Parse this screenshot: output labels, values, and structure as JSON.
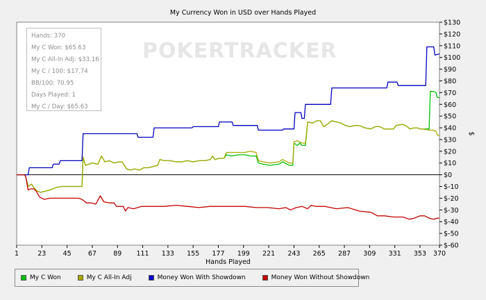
{
  "chart_data": {
    "type": "line",
    "title": "My Currency Won in USD over Hands Played",
    "xlabel": "Hands Played",
    "ylabel": "$",
    "xlim": [
      1,
      370
    ],
    "ylim": [
      -60,
      130
    ],
    "x_ticks": [
      1,
      23,
      45,
      67,
      89,
      111,
      133,
      155,
      177,
      199,
      221,
      243,
      265,
      287,
      309,
      331,
      353,
      370
    ],
    "y_ticks": [
      -60,
      -50,
      -40,
      -30,
      -20,
      -10,
      0,
      10,
      20,
      30,
      40,
      50,
      60,
      70,
      80,
      90,
      100,
      110,
      120,
      130
    ],
    "y_tick_labels": [
      "$-60",
      "$-50",
      "$-40",
      "$-30",
      "$-20",
      "$-10",
      "$0",
      "$10",
      "$20",
      "$30",
      "$40",
      "$50",
      "$60",
      "$70",
      "$80",
      "$90",
      "$100",
      "$110",
      "$120",
      "$130"
    ],
    "grid": false,
    "zero_line": true,
    "legend_position": "bottom",
    "series": [
      {
        "name": "My C Won",
        "color": "#00c000",
        "points": [
          [
            1,
            0
          ],
          [
            8,
            0
          ],
          [
            9,
            -2
          ],
          [
            11,
            -10
          ],
          [
            14,
            -8
          ],
          [
            16,
            -11
          ],
          [
            19,
            -14
          ],
          [
            22,
            -15
          ],
          [
            26,
            -14
          ],
          [
            30,
            -13
          ],
          [
            35,
            -11
          ],
          [
            40,
            -10
          ],
          [
            48,
            -10
          ],
          [
            58,
            -10
          ],
          [
            59,
            15
          ],
          [
            61,
            8
          ],
          [
            64,
            9
          ],
          [
            67,
            10
          ],
          [
            72,
            9
          ],
          [
            75,
            16
          ],
          [
            78,
            11
          ],
          [
            82,
            12
          ],
          [
            86,
            10
          ],
          [
            90,
            11
          ],
          [
            93,
            11
          ],
          [
            97,
            5
          ],
          [
            100,
            4
          ],
          [
            104,
            5
          ],
          [
            108,
            4
          ],
          [
            112,
            6
          ],
          [
            116,
            6
          ],
          [
            120,
            7
          ],
          [
            124,
            8
          ],
          [
            126,
            13
          ],
          [
            130,
            12
          ],
          [
            135,
            12
          ],
          [
            140,
            11
          ],
          [
            145,
            11
          ],
          [
            150,
            12
          ],
          [
            155,
            11
          ],
          [
            160,
            12
          ],
          [
            165,
            12
          ],
          [
            170,
            13
          ],
          [
            172,
            16
          ],
          [
            174,
            13
          ],
          [
            178,
            14
          ],
          [
            182,
            14
          ],
          [
            184,
            17
          ],
          [
            188,
            16
          ],
          [
            195,
            17
          ],
          [
            200,
            17
          ],
          [
            205,
            16
          ],
          [
            210,
            16
          ],
          [
            212,
            10
          ],
          [
            216,
            9
          ],
          [
            222,
            8
          ],
          [
            230,
            9
          ],
          [
            233,
            11
          ],
          [
            239,
            8
          ],
          [
            242,
            8
          ],
          [
            243,
            27
          ],
          [
            246,
            25
          ],
          [
            248,
            27
          ],
          [
            250,
            25
          ],
          [
            253,
            25
          ],
          [
            255,
            45
          ],
          [
            259,
            44
          ],
          [
            263,
            46
          ],
          [
            266,
            46
          ],
          [
            269,
            41
          ],
          [
            272,
            43
          ],
          [
            276,
            46
          ],
          [
            280,
            45
          ],
          [
            284,
            44
          ],
          [
            288,
            42
          ],
          [
            292,
            41
          ],
          [
            296,
            42
          ],
          [
            300,
            42
          ],
          [
            305,
            40
          ],
          [
            310,
            39
          ],
          [
            314,
            41
          ],
          [
            318,
            41
          ],
          [
            322,
            39
          ],
          [
            326,
            39
          ],
          [
            330,
            39
          ],
          [
            332,
            42
          ],
          [
            338,
            43
          ],
          [
            342,
            41
          ],
          [
            344,
            39
          ],
          [
            348,
            40
          ],
          [
            351,
            40
          ],
          [
            353,
            39
          ],
          [
            356,
            39
          ],
          [
            361,
            39
          ],
          [
            362,
            71
          ],
          [
            365,
            71
          ],
          [
            367,
            70
          ],
          [
            368,
            66
          ],
          [
            370,
            65.63
          ]
        ]
      },
      {
        "name": "My C All-In Adj",
        "color": "#a8a800",
        "points": [
          [
            1,
            0
          ],
          [
            8,
            0
          ],
          [
            9,
            -2
          ],
          [
            11,
            -10
          ],
          [
            14,
            -8
          ],
          [
            16,
            -11
          ],
          [
            19,
            -14
          ],
          [
            22,
            -15
          ],
          [
            26,
            -14
          ],
          [
            30,
            -13
          ],
          [
            35,
            -11
          ],
          [
            40,
            -10
          ],
          [
            48,
            -10
          ],
          [
            58,
            -10
          ],
          [
            59,
            15
          ],
          [
            61,
            8
          ],
          [
            64,
            9
          ],
          [
            67,
            10
          ],
          [
            72,
            9
          ],
          [
            75,
            16
          ],
          [
            78,
            11
          ],
          [
            82,
            12
          ],
          [
            86,
            10
          ],
          [
            90,
            11
          ],
          [
            93,
            11
          ],
          [
            97,
            5
          ],
          [
            100,
            4
          ],
          [
            104,
            5
          ],
          [
            108,
            4
          ],
          [
            112,
            6
          ],
          [
            116,
            6
          ],
          [
            120,
            7
          ],
          [
            124,
            8
          ],
          [
            126,
            13
          ],
          [
            130,
            12
          ],
          [
            135,
            12
          ],
          [
            140,
            11
          ],
          [
            145,
            11
          ],
          [
            150,
            12
          ],
          [
            155,
            11
          ],
          [
            160,
            12
          ],
          [
            165,
            12
          ],
          [
            170,
            13
          ],
          [
            172,
            16
          ],
          [
            174,
            13
          ],
          [
            178,
            14
          ],
          [
            182,
            14
          ],
          [
            184,
            19
          ],
          [
            188,
            19
          ],
          [
            195,
            19
          ],
          [
            200,
            19
          ],
          [
            205,
            20
          ],
          [
            210,
            19
          ],
          [
            212,
            12
          ],
          [
            216,
            11
          ],
          [
            222,
            10
          ],
          [
            230,
            11
          ],
          [
            233,
            13
          ],
          [
            239,
            10
          ],
          [
            242,
            10
          ],
          [
            243,
            28
          ],
          [
            246,
            29
          ],
          [
            248,
            28
          ],
          [
            250,
            27
          ],
          [
            253,
            27
          ],
          [
            255,
            45
          ],
          [
            259,
            44
          ],
          [
            263,
            46
          ],
          [
            266,
            46
          ],
          [
            269,
            41
          ],
          [
            272,
            43
          ],
          [
            276,
            46
          ],
          [
            280,
            45
          ],
          [
            284,
            44
          ],
          [
            288,
            42
          ],
          [
            292,
            41
          ],
          [
            296,
            42
          ],
          [
            300,
            42
          ],
          [
            305,
            40
          ],
          [
            310,
            39
          ],
          [
            314,
            41
          ],
          [
            318,
            41
          ],
          [
            322,
            39
          ],
          [
            326,
            39
          ],
          [
            330,
            39
          ],
          [
            332,
            42
          ],
          [
            338,
            43
          ],
          [
            342,
            41
          ],
          [
            344,
            39
          ],
          [
            348,
            40
          ],
          [
            351,
            40
          ],
          [
            353,
            39
          ],
          [
            356,
            39
          ],
          [
            361,
            38
          ],
          [
            364,
            38
          ],
          [
            367,
            37
          ],
          [
            368,
            34
          ],
          [
            370,
            33.16
          ]
        ]
      },
      {
        "name": "Money Won With Showdown",
        "color": "#0000c0",
        "points": [
          [
            1,
            0
          ],
          [
            11,
            0
          ],
          [
            12,
            6
          ],
          [
            20,
            6
          ],
          [
            32,
            6
          ],
          [
            33,
            9
          ],
          [
            38,
            9
          ],
          [
            39,
            12
          ],
          [
            58,
            12
          ],
          [
            59,
            35
          ],
          [
            106,
            35
          ],
          [
            107,
            32
          ],
          [
            120,
            32
          ],
          [
            121,
            40
          ],
          [
            154,
            40
          ],
          [
            155,
            41
          ],
          [
            177,
            41
          ],
          [
            178,
            45
          ],
          [
            189,
            45
          ],
          [
            190,
            42
          ],
          [
            211,
            42
          ],
          [
            212,
            38
          ],
          [
            233,
            38
          ],
          [
            234,
            39
          ],
          [
            243,
            39
          ],
          [
            244,
            53
          ],
          [
            249,
            53
          ],
          [
            250,
            48
          ],
          [
            252,
            48
          ],
          [
            253,
            60
          ],
          [
            275,
            60
          ],
          [
            276,
            74
          ],
          [
            324,
            74
          ],
          [
            325,
            79
          ],
          [
            333,
            79
          ],
          [
            334,
            76
          ],
          [
            358,
            76
          ],
          [
            359,
            109
          ],
          [
            365,
            109
          ],
          [
            366,
            102
          ],
          [
            370,
            103
          ]
        ]
      },
      {
        "name": "Money Won Without Showdown",
        "color": "#c00000",
        "points": [
          [
            1,
            0
          ],
          [
            8,
            0
          ],
          [
            9,
            -2
          ],
          [
            11,
            -13
          ],
          [
            13,
            -12
          ],
          [
            16,
            -12
          ],
          [
            18,
            -14
          ],
          [
            21,
            -19
          ],
          [
            25,
            -21
          ],
          [
            30,
            -20
          ],
          [
            40,
            -20
          ],
          [
            55,
            -20
          ],
          [
            58,
            -21
          ],
          [
            62,
            -24
          ],
          [
            66,
            -24
          ],
          [
            70,
            -25
          ],
          [
            74,
            -18
          ],
          [
            77,
            -23
          ],
          [
            82,
            -24
          ],
          [
            86,
            -24
          ],
          [
            88,
            -27
          ],
          [
            94,
            -27
          ],
          [
            96,
            -31
          ],
          [
            98,
            -28
          ],
          [
            103,
            -29
          ],
          [
            110,
            -27
          ],
          [
            120,
            -27
          ],
          [
            130,
            -27
          ],
          [
            140,
            -26
          ],
          [
            150,
            -27
          ],
          [
            160,
            -28
          ],
          [
            170,
            -27
          ],
          [
            180,
            -27
          ],
          [
            190,
            -27
          ],
          [
            200,
            -27
          ],
          [
            210,
            -28
          ],
          [
            220,
            -28
          ],
          [
            230,
            -29
          ],
          [
            236,
            -28
          ],
          [
            240,
            -30
          ],
          [
            245,
            -28
          ],
          [
            250,
            -27
          ],
          [
            255,
            -29
          ],
          [
            258,
            -26
          ],
          [
            262,
            -27
          ],
          [
            270,
            -27
          ],
          [
            280,
            -29
          ],
          [
            290,
            -28
          ],
          [
            300,
            -31
          ],
          [
            310,
            -32
          ],
          [
            316,
            -35
          ],
          [
            322,
            -35
          ],
          [
            330,
            -36
          ],
          [
            338,
            -36
          ],
          [
            344,
            -38
          ],
          [
            348,
            -37
          ],
          [
            353,
            -35
          ],
          [
            357,
            -35
          ],
          [
            361,
            -37
          ],
          [
            365,
            -38
          ],
          [
            368,
            -37
          ],
          [
            370,
            -37
          ]
        ]
      }
    ]
  },
  "stats": [
    "Hands: 370",
    "My C Won: $65.63",
    "My C All-In Adj: $33.16",
    "My C / 100: $17.74",
    "BB/100: 70.95",
    "Days Played: 1",
    "My C / Day: $65.63"
  ],
  "watermark": "POKERTRACKER",
  "legend": [
    {
      "label": "My C Won",
      "color": "#00c000"
    },
    {
      "label": "My C All-In Adj",
      "color": "#a8a800"
    },
    {
      "label": "Money Won With Showdown",
      "color": "#0000c0"
    },
    {
      "label": "Money Won Without Showdown",
      "color": "#c00000"
    }
  ]
}
